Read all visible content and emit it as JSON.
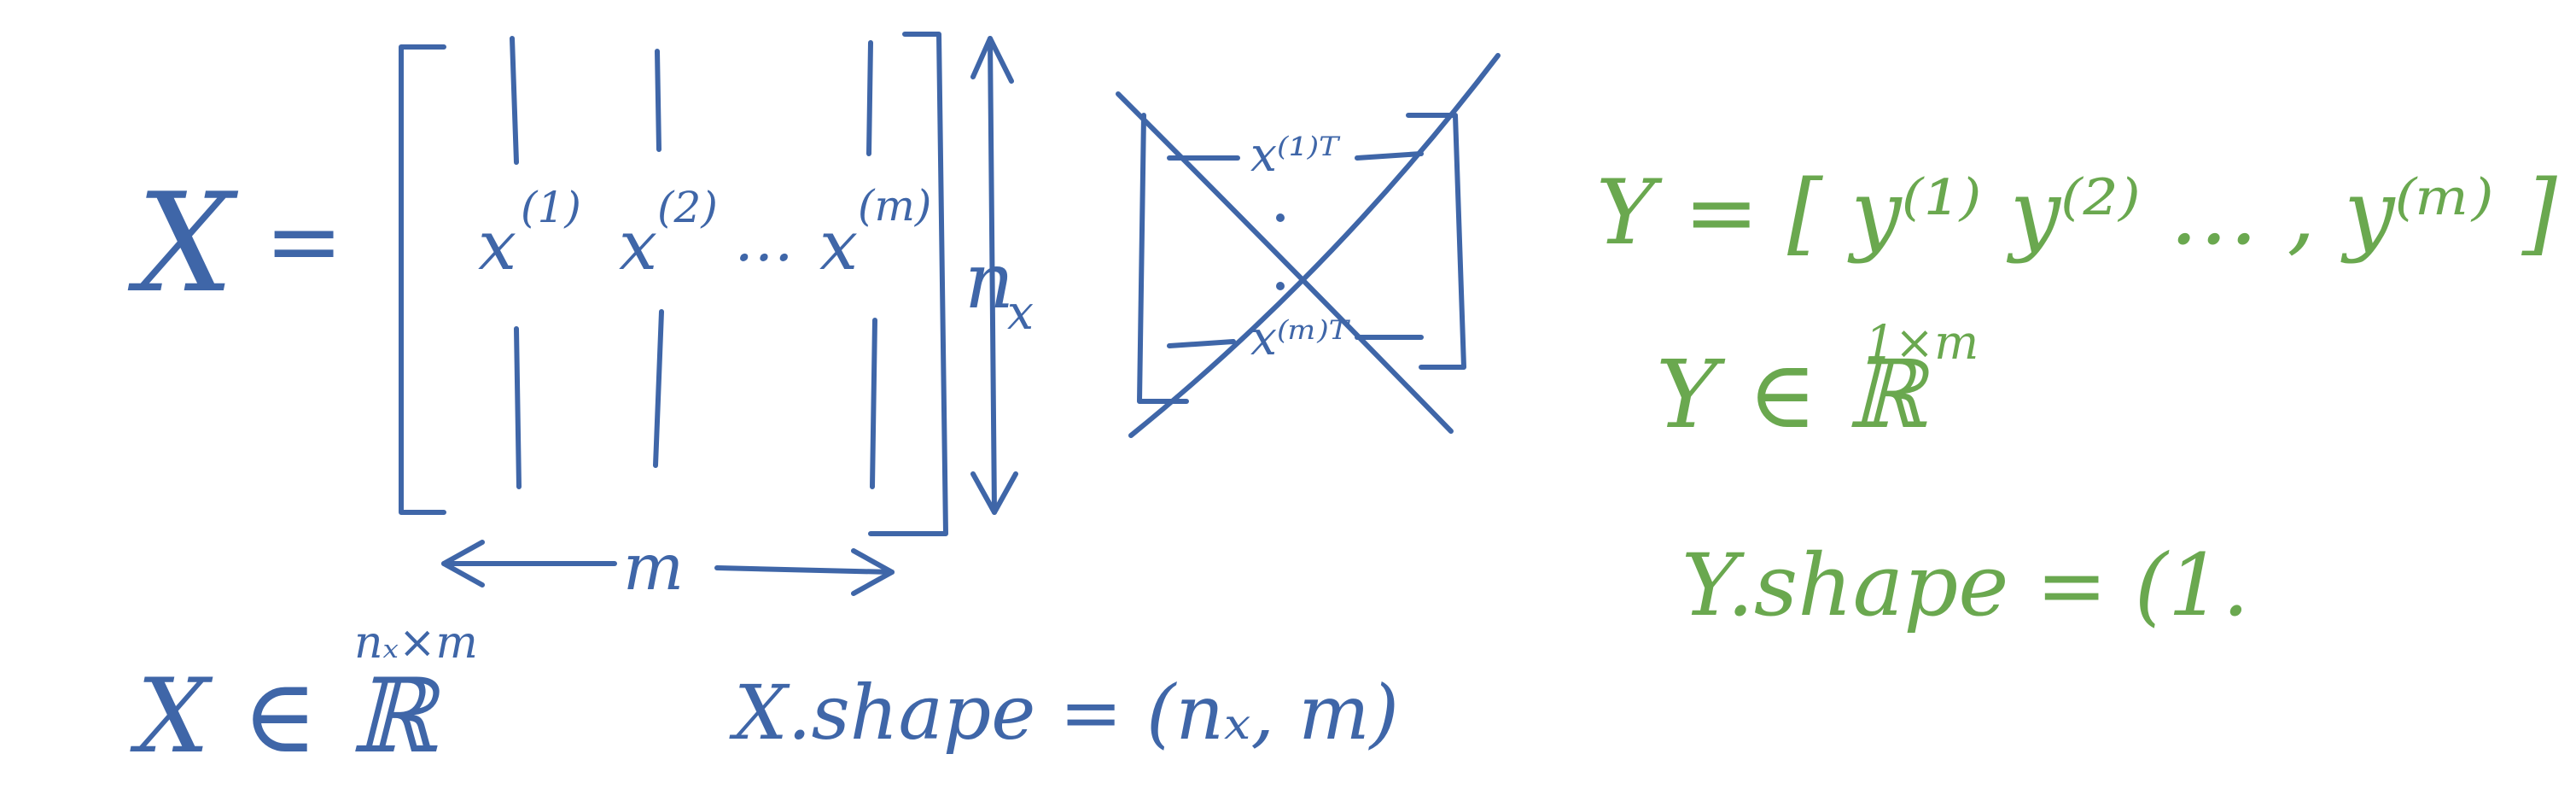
{
  "left_panel": {
    "x_label": "X",
    "equals": "=",
    "matrix_columns": [
      "x",
      "x",
      "…",
      "x"
    ],
    "matrix_column_superscripts": [
      "(1)",
      "(2)",
      "",
      "(m)"
    ],
    "row_dim_label": "n",
    "row_dim_sub": "x",
    "col_dim_label": "m",
    "membership_text": "X ∈ ℝ",
    "membership_exponent": "nₓ×m",
    "shape_text": "X.shape = (nₓ, m)"
  },
  "crossed_matrix": {
    "top_label": "x⁽¹⁾ᵀ",
    "bottom_label": "x⁽ᵐ⁾ᵀ"
  },
  "right_panel": {
    "y_definition": "Y = [ y⁽¹⁾ y⁽²⁾ … , y⁽ᵐ⁾ ]",
    "y_membership": "Y ∈ ℝ",
    "y_membership_exponent": "1×m",
    "y_shape": "Y.shape = (1."
  },
  "colors": {
    "ink_blue": "#3f66a8",
    "ink_green": "#6aa84f",
    "background": "#ffffff"
  }
}
